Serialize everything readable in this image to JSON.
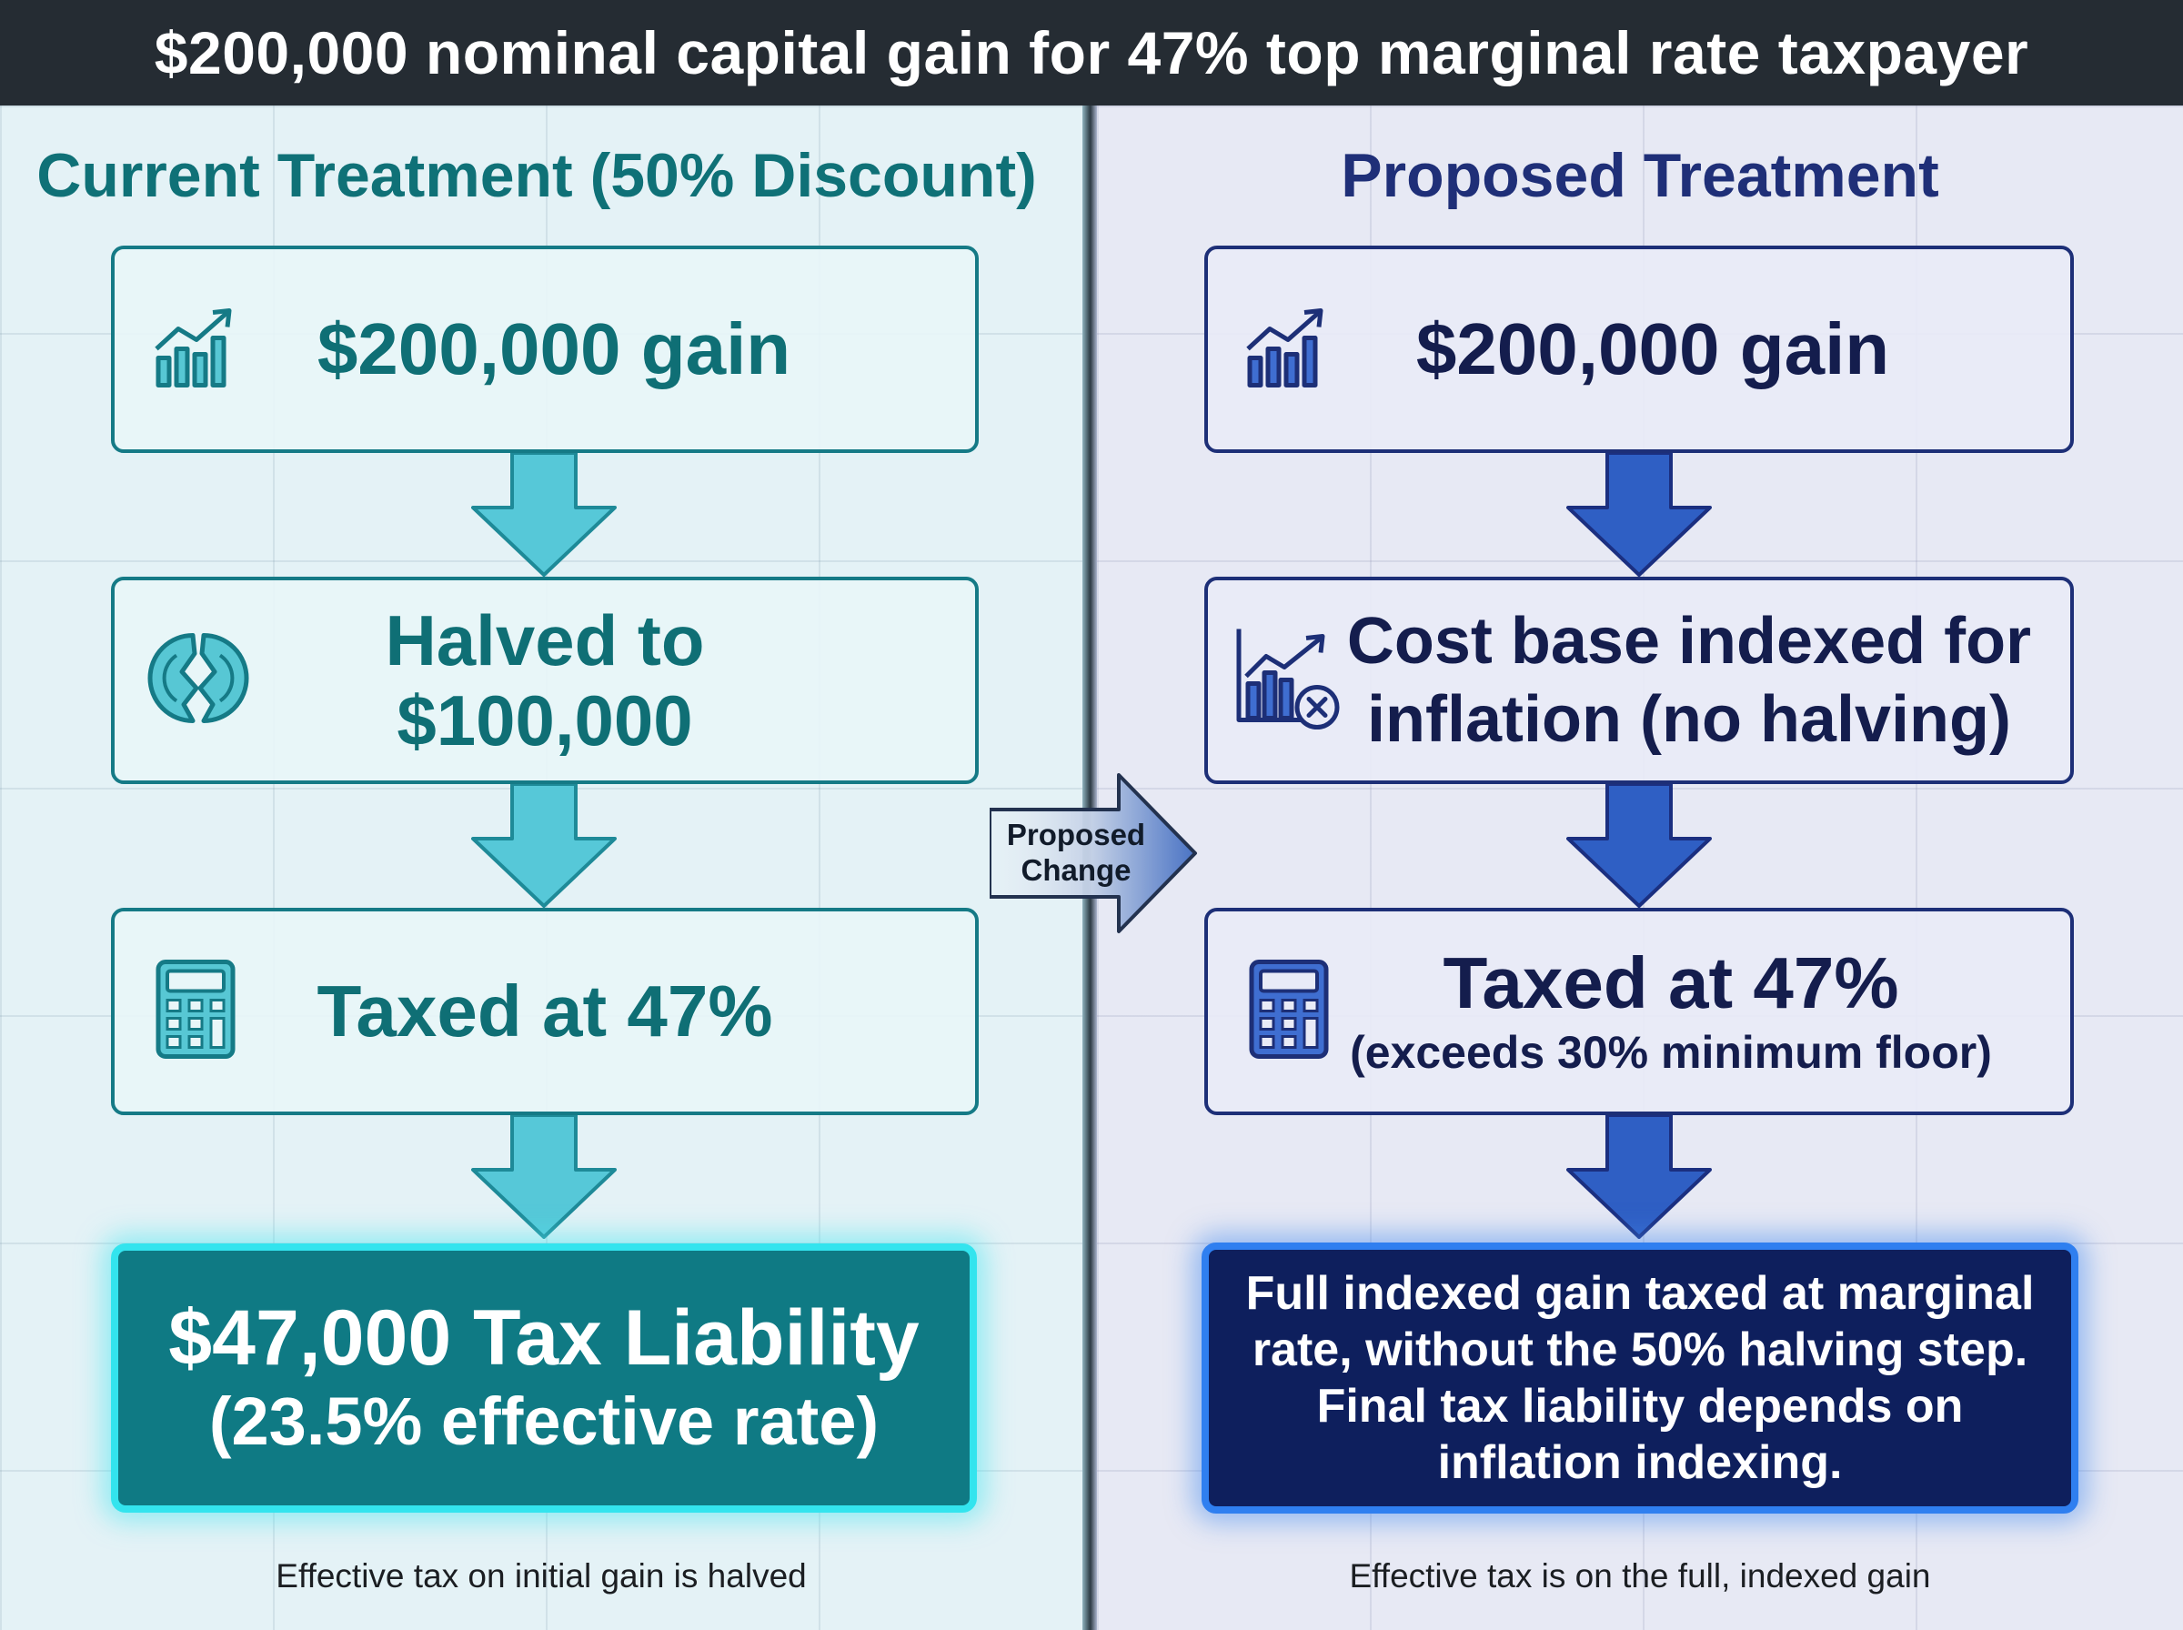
{
  "title": "$200,000 nominal capital gain for 47% top marginal rate taxpayer",
  "left": {
    "heading": "Current Treatment (50% Discount)",
    "step1": "$200,000 gain",
    "step2_line1": "Halved to",
    "step2_line2": "$100,000",
    "step3": "Taxed at 47%",
    "result_line1": "$47,000 Tax Liability",
    "result_line2": "(23.5% effective rate)",
    "caption": "Effective tax on initial gain is halved"
  },
  "right": {
    "heading": "Proposed Treatment",
    "step1": "$200,000 gain",
    "step2_line1": "Cost base indexed for",
    "step2_line2": "inflation (no halving)",
    "step3_line1": "Taxed at 47%",
    "step3_line2": "(exceeds 30% minimum floor)",
    "result": "Full indexed gain taxed at marginal rate, without the 50% halving step. Final tax liability depends on inflation indexing.",
    "caption": "Effective tax is on the full, indexed gain"
  },
  "change_label_line1": "Proposed",
  "change_label_line2": "Change",
  "icons": {
    "growth": "chart-growth-icon",
    "split": "split-circle-icon",
    "calculator": "calculator-icon",
    "indexed": "chart-x-icon"
  },
  "colors": {
    "left_accent": "#157a86",
    "right_accent": "#1d2f77",
    "left_result": "#0f7a84",
    "right_result": "#0e1f5d"
  }
}
